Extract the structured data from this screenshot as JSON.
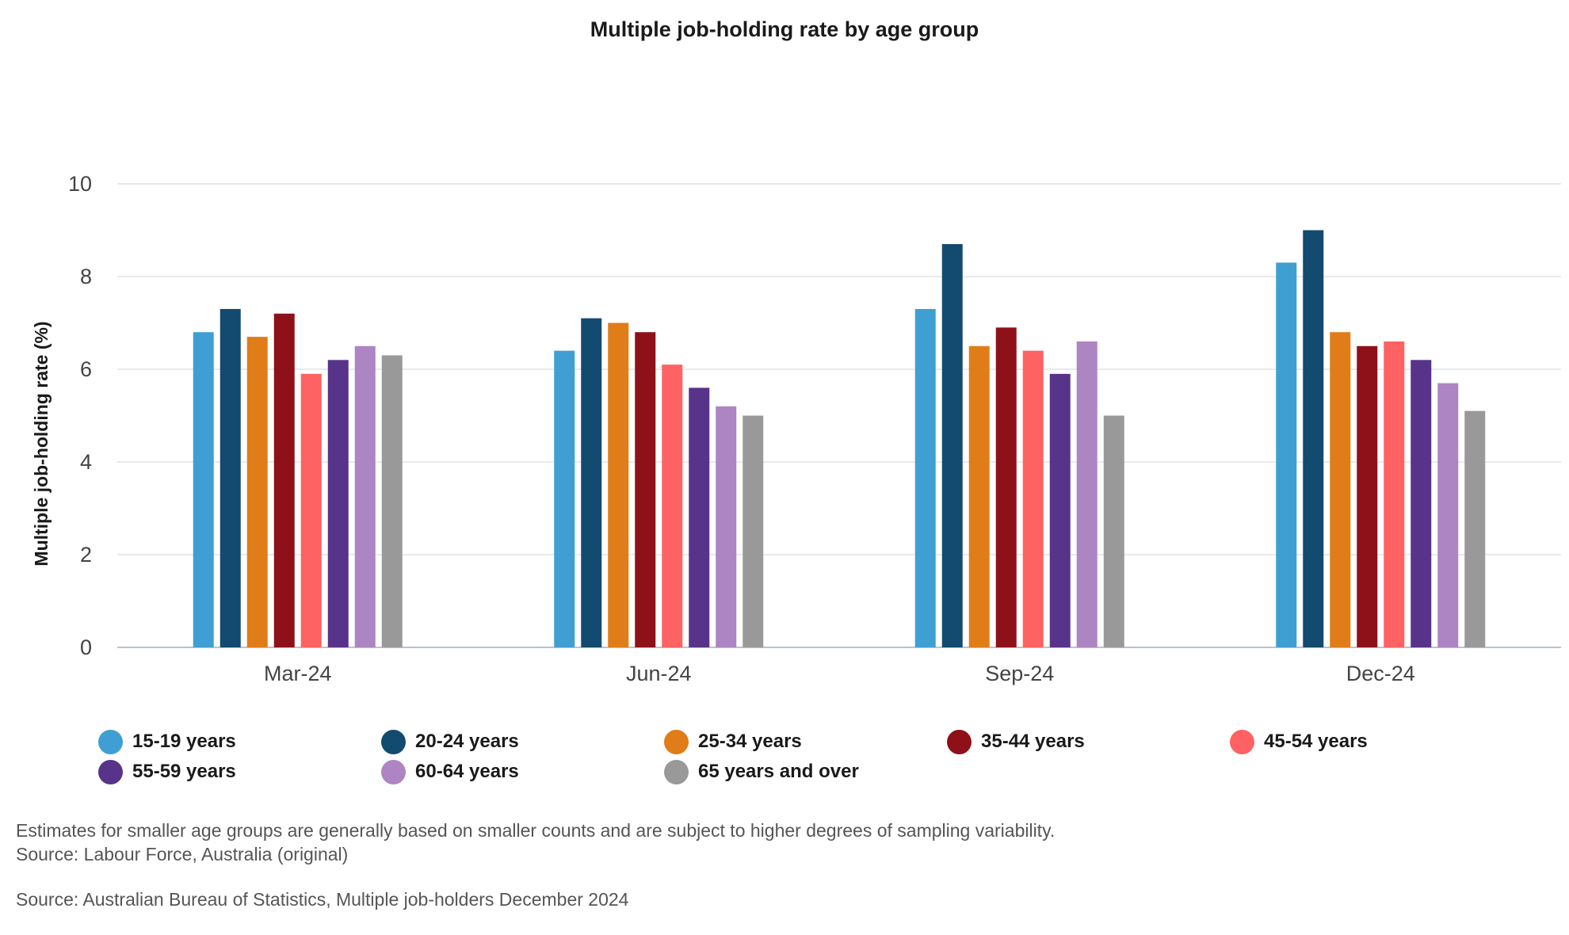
{
  "chart_data": {
    "type": "bar",
    "title": "Multiple job-holding rate by age group",
    "ylabel": "Multiple job-holding rate (%)",
    "xlabel": "",
    "ylim": [
      0,
      10
    ],
    "yticks": [
      0,
      2,
      4,
      6,
      8,
      10
    ],
    "grid": true,
    "legend_position": "bottom",
    "categories": [
      "Mar-24",
      "Jun-24",
      "Sep-24",
      "Dec-24"
    ],
    "series": [
      {
        "name": "15-19 years",
        "color": "#3f9fd2",
        "values": [
          6.8,
          6.4,
          7.3,
          8.3
        ]
      },
      {
        "name": "20-24 years",
        "color": "#134a70",
        "values": [
          7.3,
          7.1,
          8.7,
          9.0
        ]
      },
      {
        "name": "25-34 years",
        "color": "#e07d19",
        "values": [
          6.7,
          7.0,
          6.5,
          6.8
        ]
      },
      {
        "name": "35-44 years",
        "color": "#8e1119",
        "values": [
          7.2,
          6.8,
          6.9,
          6.5
        ]
      },
      {
        "name": "45-54 years",
        "color": "#ff6262",
        "values": [
          5.9,
          6.1,
          6.4,
          6.6
        ]
      },
      {
        "name": "55-59 years",
        "color": "#58338a",
        "values": [
          6.2,
          5.6,
          5.9,
          6.2
        ]
      },
      {
        "name": "60-64 years",
        "color": "#ac85c2",
        "values": [
          6.5,
          5.2,
          6.6,
          5.7
        ]
      },
      {
        "name": "65 years and over",
        "color": "#999999",
        "values": [
          6.3,
          5.0,
          5.0,
          5.1
        ]
      }
    ]
  },
  "notes": [
    "Estimates for smaller age groups are generally based on smaller counts and are subject to higher degrees of sampling variability.",
    "Source: Labour Force, Australia (original)"
  ],
  "source": "Source: Australian Bureau of Statistics, Multiple job-holders December 2024"
}
